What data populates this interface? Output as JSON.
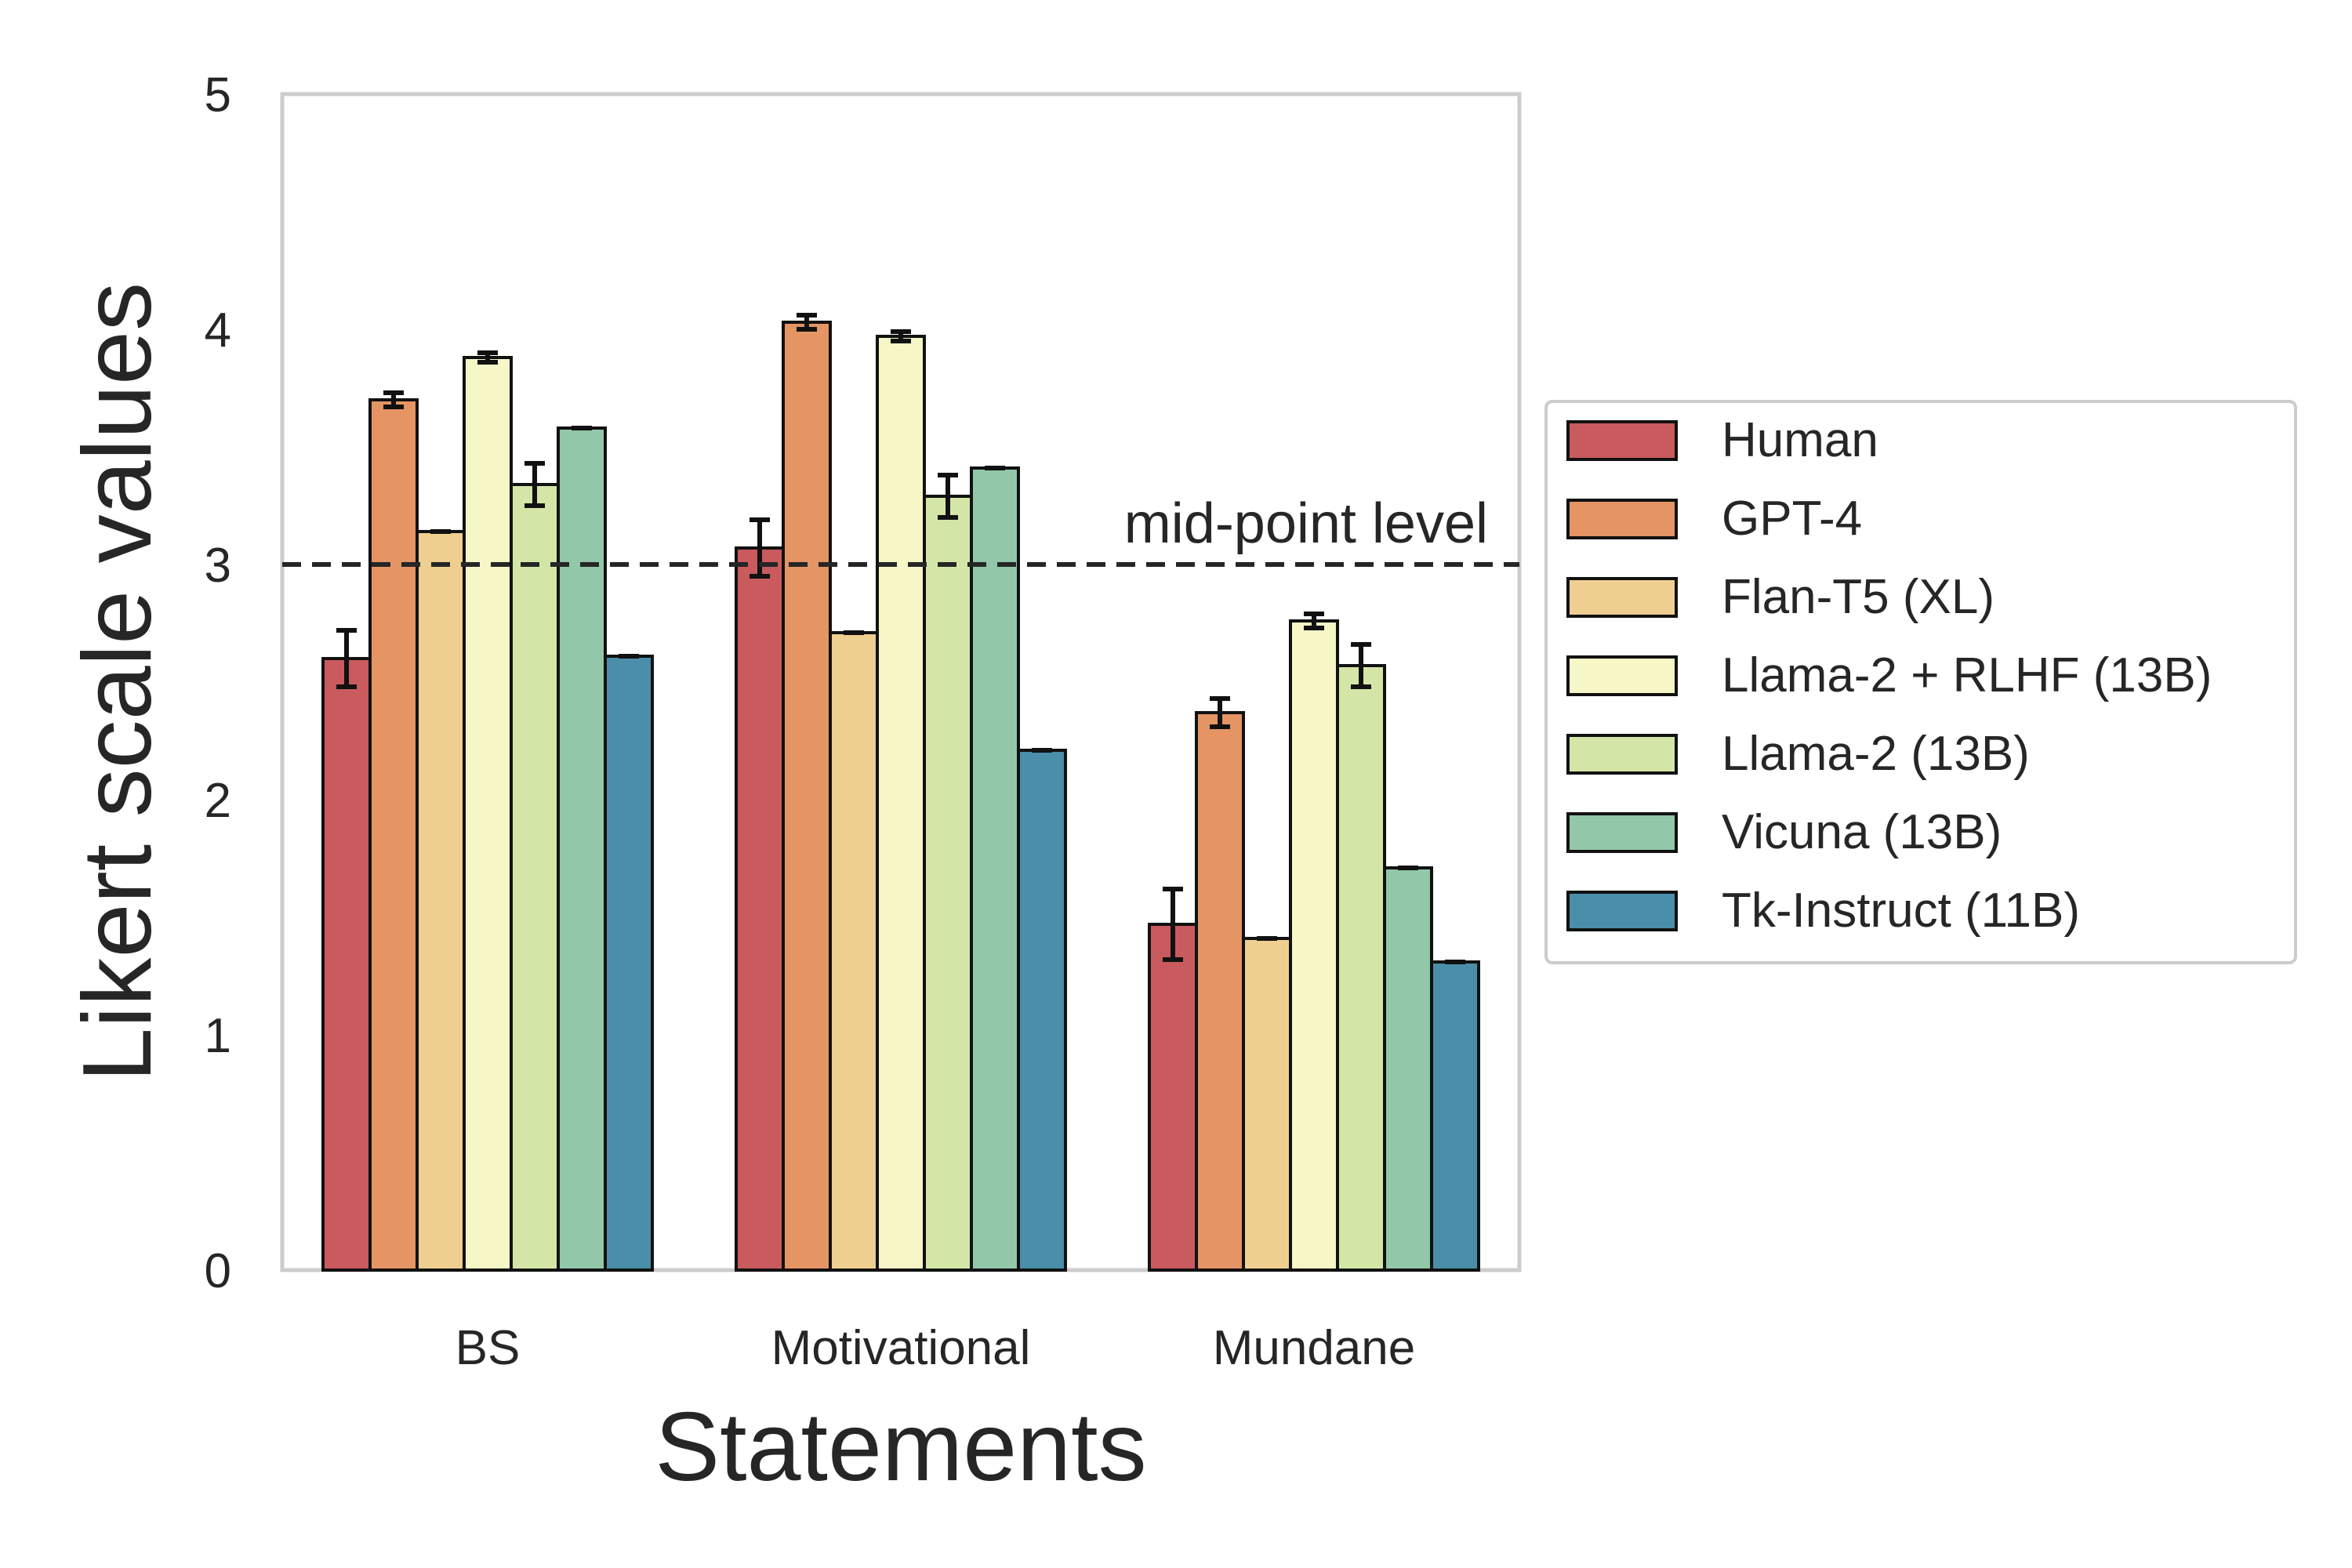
{
  "chart_data": {
    "type": "bar",
    "title": "",
    "xlabel": "Statements",
    "ylabel": "Likert scale values",
    "ylim": [
      0,
      5
    ],
    "yticks": [
      0,
      1,
      2,
      3,
      4,
      5
    ],
    "grid": false,
    "legend_position": "right-outside",
    "categories": [
      "BS",
      "Motivational",
      "Mundane"
    ],
    "series": [
      {
        "name": "Human",
        "color": "#c95b5e",
        "values": [
          2.6,
          3.07,
          1.47
        ],
        "errors": [
          0.12,
          0.12,
          0.15
        ]
      },
      {
        "name": "GPT-4",
        "color": "#e59464",
        "values": [
          3.7,
          4.03,
          2.37
        ],
        "errors": [
          0.03,
          0.03,
          0.06
        ]
      },
      {
        "name": "Flan-T5 (XL)",
        "color": "#eecf90",
        "values": [
          3.14,
          2.71,
          1.41
        ],
        "errors": [
          0.0,
          0.0,
          0.0
        ]
      },
      {
        "name": "Llama-2 + RLHF (13B)",
        "color": "#f7f6c6",
        "values": [
          3.88,
          3.97,
          2.76
        ],
        "errors": [
          0.02,
          0.02,
          0.03
        ]
      },
      {
        "name": "Llama-2 (13B)",
        "color": "#d4e6a7",
        "values": [
          3.34,
          3.29,
          2.57
        ],
        "errors": [
          0.09,
          0.09,
          0.09
        ]
      },
      {
        "name": "Vicuna (13B)",
        "color": "#92c7aa",
        "values": [
          3.58,
          3.41,
          1.71
        ],
        "errors": [
          0.0,
          0.0,
          0.0
        ]
      },
      {
        "name": "Tk-Instruct (11B)",
        "color": "#4a8ea9",
        "values": [
          2.61,
          2.21,
          1.31
        ],
        "errors": [
          0.0,
          0.0,
          0.0
        ]
      }
    ],
    "reference_line": {
      "value": 3,
      "label": "mid-point level",
      "style": "dashed"
    }
  }
}
